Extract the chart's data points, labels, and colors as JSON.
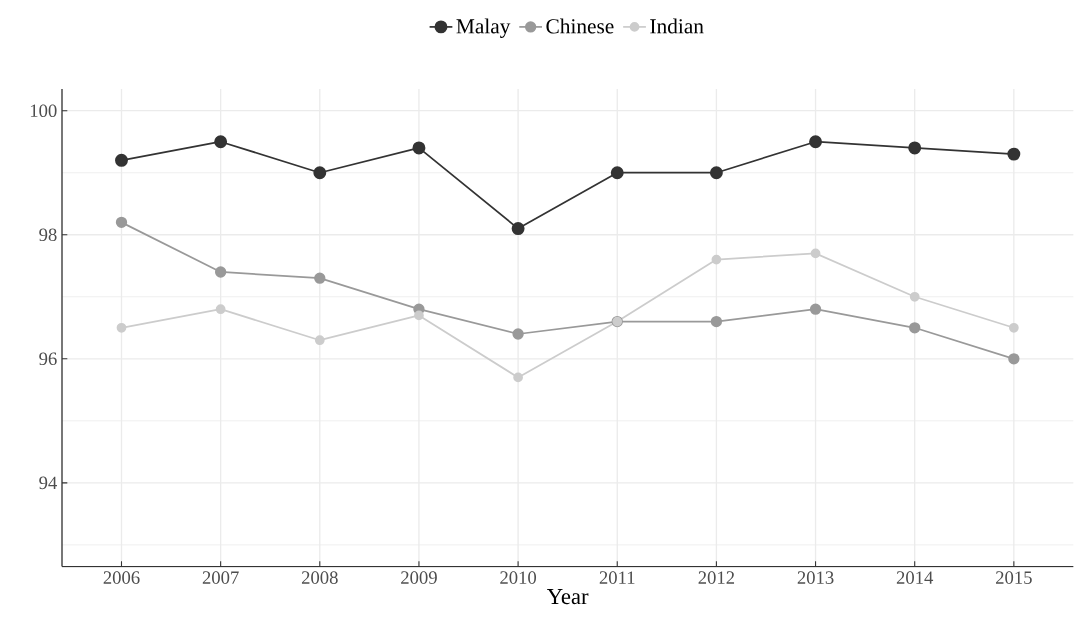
{
  "chart_data": {
    "type": "line",
    "xlabel": "Year",
    "x": [
      2006,
      2007,
      2008,
      2009,
      2010,
      2011,
      2012,
      2013,
      2014,
      2015
    ],
    "series": [
      {
        "name": "Malay",
        "color": "#333333",
        "values": [
          99.2,
          99.5,
          99.0,
          99.4,
          98.1,
          99.0,
          99.0,
          99.5,
          99.4,
          99.3
        ]
      },
      {
        "name": "Chinese",
        "color": "#999999",
        "values": [
          98.2,
          97.4,
          97.3,
          96.8,
          96.4,
          96.6,
          96.6,
          96.8,
          96.5,
          96.0
        ]
      },
      {
        "name": "Indian",
        "color": "#cccccc",
        "values": [
          96.5,
          96.8,
          96.3,
          96.7,
          95.7,
          96.6,
          97.6,
          97.7,
          97.0,
          96.5
        ]
      }
    ],
    "xlim": [
      2005.4,
      2015.6
    ],
    "xticks": [
      2006,
      2007,
      2008,
      2009,
      2010,
      2011,
      2012,
      2013,
      2014,
      2015
    ],
    "ylim": [
      92.65,
      100.35
    ],
    "yticks": [
      94,
      96,
      98,
      100
    ],
    "grid": true,
    "legend": "top",
    "marker": "circle",
    "line_style": "solid"
  }
}
